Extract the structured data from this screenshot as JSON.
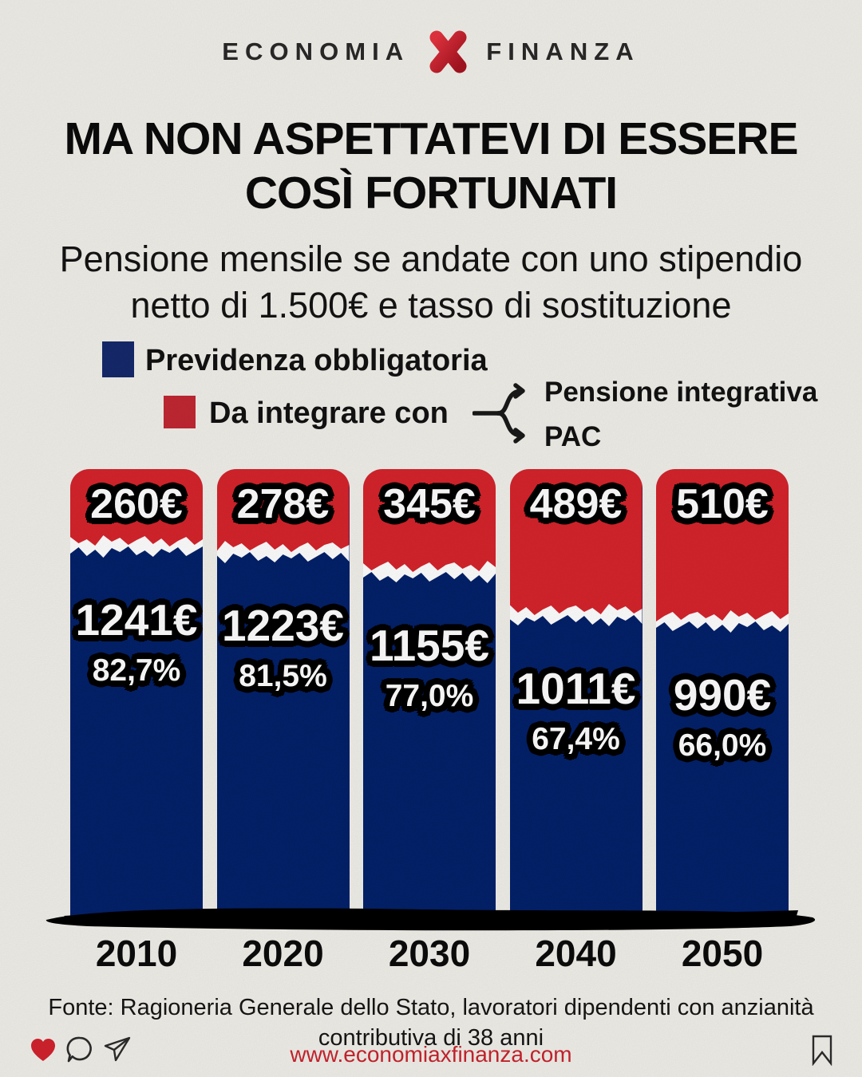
{
  "brand": {
    "left": "ECONOMIA",
    "right": "FINANZA",
    "x_color": "#c8202d"
  },
  "title": {
    "lines": [
      "MA NON ASPETTATEVI DI ESSERE",
      "COSÌ  FORTUNATI"
    ]
  },
  "subtitle": {
    "lines": [
      "Pensione mensile se andate con uno stipendio",
      "netto di 1.500€ e tasso di sostituzione"
    ]
  },
  "legend": {
    "obligatory": {
      "label": "Previdenza obbligatoria",
      "color": "#16296b"
    },
    "integrate": {
      "label": "Da integrare con",
      "color": "#c22833"
    },
    "branch1": "Pensione integrativa",
    "branch2": "PAC"
  },
  "chart_data": {
    "type": "bar",
    "stacked": true,
    "categories": [
      "2010",
      "2020",
      "2030",
      "2040",
      "2050"
    ],
    "series": [
      {
        "name": "Previdenza obbligatoria",
        "color": "#04216a",
        "values": [
          1241,
          1223,
          1155,
          1011,
          990
        ],
        "labels": [
          "1241€",
          "1223€",
          "1155€",
          "1011€",
          "990€"
        ],
        "pct_labels": [
          "82,7%",
          "81,5%",
          "77,0%",
          "67,4%",
          "66,0%"
        ]
      },
      {
        "name": "Da integrare con (Pensione integrativa / PAC)",
        "color": "#d6242c",
        "values": [
          260,
          278,
          345,
          489,
          510
        ],
        "labels": [
          "260€",
          "278€",
          "345€",
          "489€",
          "510€"
        ]
      }
    ],
    "title": "Pensione mensile se andate con uno stipendio netto di 1.500€ e tasso di sostituzione",
    "xlabel": "",
    "ylabel": "",
    "unit": "€ / mese",
    "bar_total_reference": 1500,
    "legend_position": "top-left",
    "grid": false
  },
  "footer": {
    "source_lines": [
      "Fonte: Ragioneria Generale dello Stato, lavoratori dipendenti con anzianità",
      "contributiva di 38 anni"
    ],
    "url": "www.economiaxfinanza.com",
    "url_color": "#c9242e"
  },
  "icons": {
    "reactions": [
      "heart-icon",
      "comment-icon",
      "share-icon"
    ],
    "save": "bookmark-icon",
    "heart_color": "#d2232e",
    "outline_color": "#2c2c2c"
  },
  "page_colors": {
    "background": "#f2f0ea",
    "navy": "#04216a",
    "red": "#d6242c",
    "black": "#0b0b0b"
  }
}
